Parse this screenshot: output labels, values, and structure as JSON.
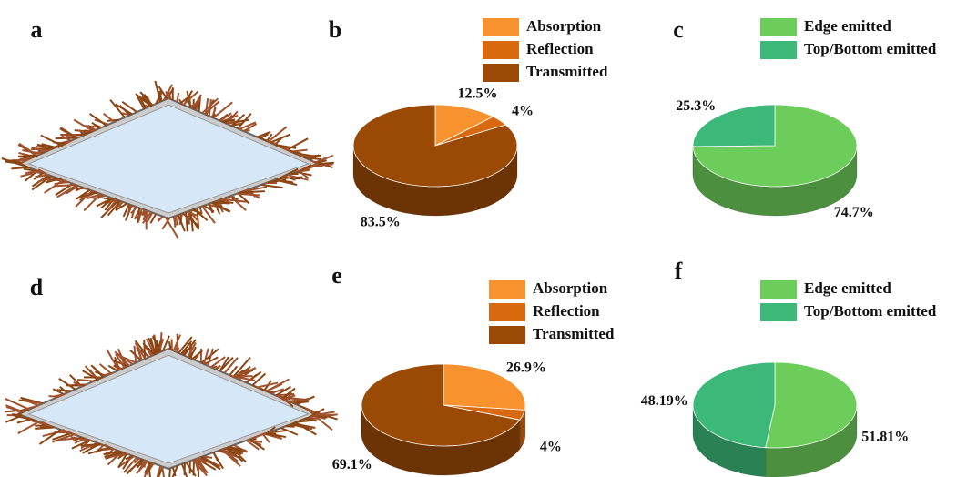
{
  "illustrations": [
    {
      "label": "a"
    },
    {
      "label": "d"
    }
  ],
  "chart_data": [
    {
      "type": "pie",
      "label": "b",
      "categories": [
        "Absorption",
        "Reflection",
        "Transmitted"
      ],
      "values": [
        12.5,
        4,
        83.5
      ],
      "value_labels": [
        "12.5%",
        "4%",
        "83.5%"
      ],
      "colors": [
        "#f7922f",
        "#d9690e",
        "#9b4a05"
      ]
    },
    {
      "type": "pie",
      "label": "c",
      "categories": [
        "Edge emitted",
        "Top/Bottom emitted"
      ],
      "values": [
        74.7,
        25.3
      ],
      "value_labels": [
        "74.7%",
        "25.3%"
      ],
      "colors": [
        "#6ccd5a",
        "#3cb878"
      ]
    },
    {
      "type": "pie",
      "label": "e",
      "categories": [
        "Absorption",
        "Reflection",
        "Transmitted"
      ],
      "values": [
        26.9,
        4,
        69.1
      ],
      "value_labels": [
        "26.9%",
        "4%",
        "69.1%"
      ],
      "colors": [
        "#f7922f",
        "#d9690e",
        "#9b4a05"
      ]
    },
    {
      "type": "pie",
      "label": "f",
      "categories": [
        "Edge emitted",
        "Top/Bottom emitted"
      ],
      "values": [
        51.81,
        48.19
      ],
      "value_labels": [
        "51.81%",
        "48.19%"
      ],
      "colors": [
        "#6ccd5a",
        "#3cb878"
      ]
    }
  ]
}
